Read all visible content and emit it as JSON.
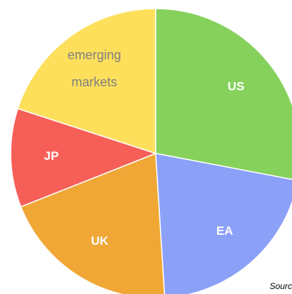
{
  "chart_data": {
    "type": "pie",
    "categories": [
      "US",
      "EA",
      "UK",
      "JP",
      "emerging markets"
    ],
    "values": [
      28,
      21,
      20,
      11,
      20
    ],
    "colors": [
      "#86d15c",
      "#8ba0f7",
      "#f0a735",
      "#f65f58",
      "#fddf5c"
    ],
    "label_colors": [
      "#ffffff",
      "#ffffff",
      "#ffffff",
      "#ffffff",
      "#808080"
    ],
    "source": "Sourc"
  }
}
